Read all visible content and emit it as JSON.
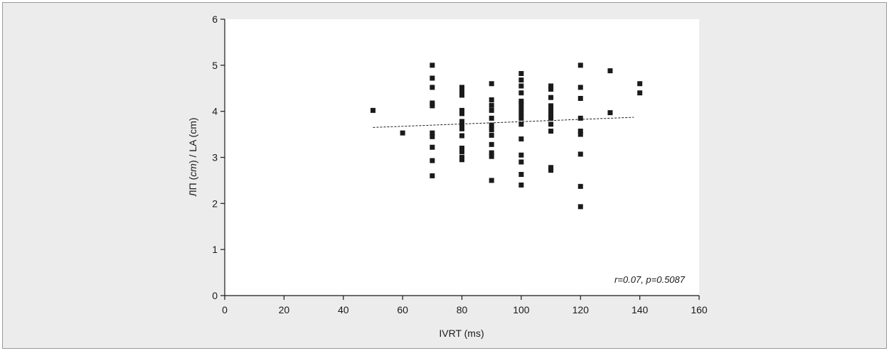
{
  "chart_data": {
    "type": "scatter",
    "xlabel": "IVRT (ms)",
    "ylabel_parts": [
      "ЛП (",
      "cm",
      ") / LA (cm)"
    ],
    "xlim": [
      0,
      160
    ],
    "ylim": [
      0,
      6
    ],
    "xticks": [
      0,
      20,
      40,
      60,
      80,
      100,
      120,
      140,
      160
    ],
    "yticks": [
      0,
      1,
      2,
      3,
      4,
      5,
      6
    ],
    "grid": false,
    "annotation": "r=0.07, p=0.5087",
    "trendline": {
      "style": "dashed",
      "x": [
        50,
        138
      ],
      "y": [
        3.65,
        3.87
      ]
    },
    "points": [
      {
        "x": 50,
        "y": 4.02
      },
      {
        "x": 60,
        "y": 3.53
      },
      {
        "x": 70,
        "y": 5.0
      },
      {
        "x": 70,
        "y": 4.72
      },
      {
        "x": 70,
        "y": 4.52
      },
      {
        "x": 70,
        "y": 4.18
      },
      {
        "x": 70,
        "y": 4.12
      },
      {
        "x": 70,
        "y": 3.53
      },
      {
        "x": 70,
        "y": 3.45
      },
      {
        "x": 70,
        "y": 3.22
      },
      {
        "x": 70,
        "y": 2.93
      },
      {
        "x": 70,
        "y": 2.6
      },
      {
        "x": 80,
        "y": 4.52
      },
      {
        "x": 80,
        "y": 4.42
      },
      {
        "x": 80,
        "y": 4.35
      },
      {
        "x": 80,
        "y": 4.02
      },
      {
        "x": 80,
        "y": 3.95
      },
      {
        "x": 80,
        "y": 3.78
      },
      {
        "x": 80,
        "y": 3.7
      },
      {
        "x": 80,
        "y": 3.62
      },
      {
        "x": 80,
        "y": 3.47
      },
      {
        "x": 80,
        "y": 3.2
      },
      {
        "x": 80,
        "y": 3.12
      },
      {
        "x": 80,
        "y": 3.0
      },
      {
        "x": 80,
        "y": 2.95
      },
      {
        "x": 90,
        "y": 4.6
      },
      {
        "x": 90,
        "y": 4.25
      },
      {
        "x": 90,
        "y": 4.13
      },
      {
        "x": 90,
        "y": 4.02
      },
      {
        "x": 90,
        "y": 3.85
      },
      {
        "x": 90,
        "y": 3.7
      },
      {
        "x": 90,
        "y": 3.6
      },
      {
        "x": 90,
        "y": 3.48
      },
      {
        "x": 90,
        "y": 3.28
      },
      {
        "x": 90,
        "y": 3.1
      },
      {
        "x": 90,
        "y": 3.02
      },
      {
        "x": 90,
        "y": 2.5
      },
      {
        "x": 100,
        "y": 4.82
      },
      {
        "x": 100,
        "y": 4.68
      },
      {
        "x": 100,
        "y": 4.55
      },
      {
        "x": 100,
        "y": 4.4
      },
      {
        "x": 100,
        "y": 4.22
      },
      {
        "x": 100,
        "y": 4.15
      },
      {
        "x": 100,
        "y": 4.05
      },
      {
        "x": 100,
        "y": 3.95
      },
      {
        "x": 100,
        "y": 3.85
      },
      {
        "x": 100,
        "y": 3.72
      },
      {
        "x": 100,
        "y": 3.4
      },
      {
        "x": 100,
        "y": 3.05
      },
      {
        "x": 100,
        "y": 2.9
      },
      {
        "x": 100,
        "y": 2.63
      },
      {
        "x": 100,
        "y": 2.4
      },
      {
        "x": 110,
        "y": 4.55
      },
      {
        "x": 110,
        "y": 4.48
      },
      {
        "x": 110,
        "y": 4.3
      },
      {
        "x": 110,
        "y": 4.12
      },
      {
        "x": 110,
        "y": 4.02
      },
      {
        "x": 110,
        "y": 3.92
      },
      {
        "x": 110,
        "y": 3.85
      },
      {
        "x": 110,
        "y": 3.72
      },
      {
        "x": 110,
        "y": 3.57
      },
      {
        "x": 110,
        "y": 2.78
      },
      {
        "x": 110,
        "y": 2.72
      },
      {
        "x": 120,
        "y": 5.0
      },
      {
        "x": 120,
        "y": 4.52
      },
      {
        "x": 120,
        "y": 4.28
      },
      {
        "x": 120,
        "y": 3.85
      },
      {
        "x": 120,
        "y": 3.57
      },
      {
        "x": 120,
        "y": 3.5
      },
      {
        "x": 120,
        "y": 3.07
      },
      {
        "x": 120,
        "y": 2.37
      },
      {
        "x": 120,
        "y": 1.93
      },
      {
        "x": 130,
        "y": 4.88
      },
      {
        "x": 130,
        "y": 3.97
      },
      {
        "x": 140,
        "y": 4.6
      },
      {
        "x": 140,
        "y": 4.4
      }
    ]
  }
}
